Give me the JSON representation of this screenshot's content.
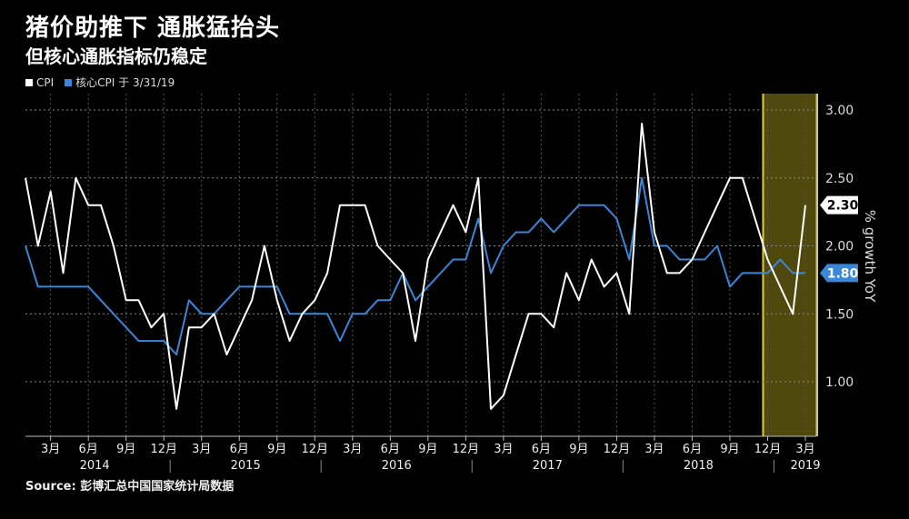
{
  "header": {
    "title": "猪价助推下  通胀猛抬头",
    "subtitle": "但核心通胀指标仍稳定"
  },
  "legend": [
    {
      "label": "CPI",
      "color": "#ffffff"
    },
    {
      "label": "核心CPI 于 3/31/19",
      "color": "#3a86d8"
    }
  ],
  "source": "Source: 彭博汇总中国国家统计局数据",
  "colors": {
    "cpi": "#ffffff",
    "core": "#3a86d8",
    "highlight": "#e5d21f"
  },
  "chart_data": {
    "type": "line",
    "ylabel": "% growth YoY",
    "ylim": [
      0.7,
      3.1
    ],
    "yticks": [
      "3.00",
      "2.50",
      "2.00",
      "1.50",
      "1.00"
    ],
    "x_month_labels": [
      "3月",
      "6月",
      "9月",
      "12月",
      "3月",
      "6月",
      "9月",
      "12月",
      "3月",
      "6月",
      "9月",
      "12月",
      "3月",
      "6月",
      "9月",
      "12月",
      "3月",
      "6月",
      "9月",
      "12月",
      "3月"
    ],
    "x_year_labels": [
      "2014",
      "2015",
      "2016",
      "2017",
      "2018",
      "2019"
    ],
    "start": "2014-01",
    "series": [
      {
        "name": "CPI",
        "color": "#ffffff",
        "last_label": "2.30",
        "values": [
          2.5,
          2.0,
          2.4,
          1.8,
          2.5,
          2.3,
          2.3,
          2.0,
          1.6,
          1.6,
          1.4,
          1.5,
          0.8,
          1.4,
          1.4,
          1.5,
          1.2,
          1.4,
          1.6,
          2.0,
          1.6,
          1.3,
          1.5,
          1.6,
          1.8,
          2.3,
          2.3,
          2.3,
          2.0,
          1.9,
          1.8,
          1.3,
          1.9,
          2.1,
          2.3,
          2.1,
          2.5,
          0.8,
          0.9,
          1.2,
          1.5,
          1.5,
          1.4,
          1.8,
          1.6,
          1.9,
          1.7,
          1.8,
          1.5,
          2.9,
          2.1,
          1.8,
          1.8,
          1.9,
          2.1,
          2.3,
          2.5,
          2.5,
          2.2,
          1.9,
          1.7,
          1.5,
          2.3
        ]
      },
      {
        "name": "核心CPI 于 3/31/19",
        "color": "#3a86d8",
        "last_label": "1.80",
        "values": [
          2.0,
          1.7,
          1.7,
          1.7,
          1.7,
          1.7,
          1.6,
          1.5,
          1.4,
          1.3,
          1.3,
          1.3,
          1.2,
          1.6,
          1.5,
          1.5,
          1.6,
          1.7,
          1.7,
          1.7,
          1.7,
          1.5,
          1.5,
          1.5,
          1.5,
          1.3,
          1.5,
          1.5,
          1.6,
          1.6,
          1.8,
          1.6,
          1.7,
          1.8,
          1.9,
          1.9,
          2.2,
          1.8,
          2.0,
          2.1,
          2.1,
          2.2,
          2.1,
          2.2,
          2.3,
          2.3,
          2.3,
          2.2,
          1.9,
          2.5,
          2.0,
          2.0,
          1.9,
          1.9,
          1.9,
          2.0,
          1.7,
          1.8,
          1.8,
          1.8,
          1.9,
          1.8,
          1.8
        ]
      }
    ],
    "highlight_range": [
      "2018-12",
      "2019-03"
    ],
    "grid": true
  }
}
